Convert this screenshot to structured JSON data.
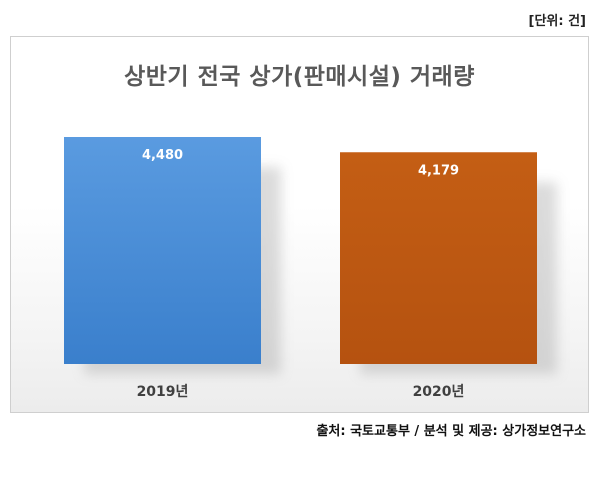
{
  "unit_label": "[단위: 건]",
  "source": "출처: 국토교통부 / 분석 및 제공: 상가정보연구소",
  "chart_data": {
    "type": "bar",
    "title": "상반기 전국 상가(판매시설) 거래량",
    "categories": [
      "2019년",
      "2020년"
    ],
    "values": [
      4480,
      4179
    ],
    "value_labels": [
      "4,480",
      "4,179"
    ],
    "colors": [
      "#4a8fd6",
      "#c05a12"
    ],
    "xlabel": "",
    "ylabel": "",
    "grid": false,
    "legend": "none"
  }
}
